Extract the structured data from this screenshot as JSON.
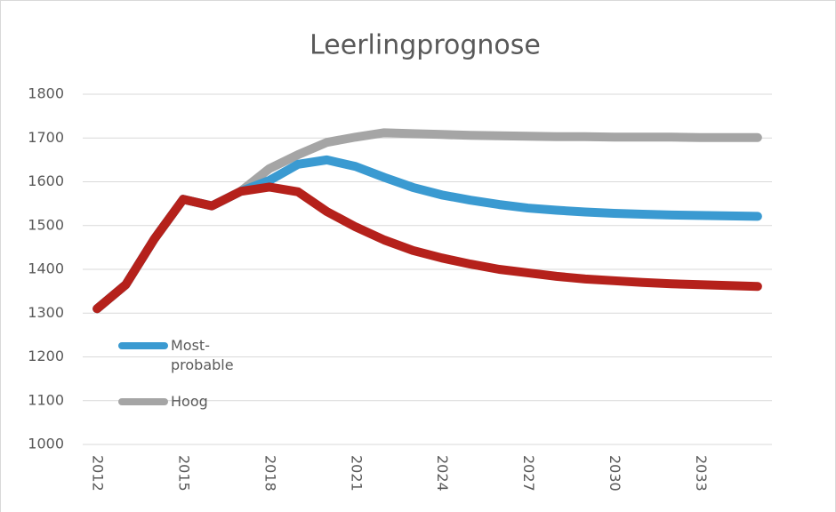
{
  "chart_data": {
    "type": "line",
    "title": "Leerlingprognose",
    "x": [
      2012,
      2013,
      2014,
      2015,
      2016,
      2017,
      2018,
      2019,
      2020,
      2021,
      2022,
      2023,
      2024,
      2025,
      2026,
      2027,
      2028,
      2029,
      2030,
      2031,
      2032,
      2033,
      2034,
      2035
    ],
    "xlim": [
      2011.5,
      2035.5
    ],
    "xticks": [
      2012,
      2015,
      2018,
      2021,
      2024,
      2027,
      2030,
      2033
    ],
    "ylim": [
      1000,
      1800
    ],
    "yticks": [
      1000,
      1100,
      1200,
      1300,
      1400,
      1500,
      1600,
      1700,
      1800
    ],
    "grid": true,
    "legend": "left",
    "series": [
      {
        "name": "Hoog",
        "color": "#a5a5a5",
        "values": [
          1310,
          1365,
          1470,
          1560,
          1545,
          1578,
          1630,
          1662,
          1690,
          1702,
          1712,
          1710,
          1708,
          1706,
          1705,
          1704,
          1703,
          1703,
          1702,
          1702,
          1702,
          1701,
          1701,
          1701
        ]
      },
      {
        "name": "Most-probable",
        "color": "#3a9ad1",
        "values": [
          1310,
          1365,
          1470,
          1560,
          1545,
          1578,
          1603,
          1640,
          1650,
          1635,
          1610,
          1587,
          1570,
          1558,
          1548,
          1540,
          1535,
          1531,
          1528,
          1526,
          1524,
          1523,
          1522,
          1521
        ]
      },
      {
        "color": "#b5211b",
        "values": [
          1310,
          1365,
          1470,
          1560,
          1545,
          1578,
          1588,
          1577,
          1532,
          1497,
          1467,
          1443,
          1426,
          1412,
          1400,
          1392,
          1384,
          1378,
          1374,
          1370,
          1367,
          1365,
          1363,
          1361
        ]
      }
    ]
  }
}
